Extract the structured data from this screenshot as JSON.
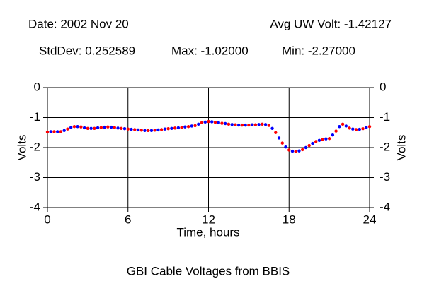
{
  "chart_data": {
    "type": "scatter",
    "title": "GBI Cable Voltages from BBIS",
    "annotations": [
      "Date: 2002 Nov 20",
      "Avg UW Volt: -1.42127",
      "StdDev: 0.252589",
      "Max: -1.02000",
      "Min: -2.27000"
    ],
    "x_label": "Time, hours",
    "y_label": "Volts",
    "y2_label": "Volts",
    "xlim": [
      0,
      24
    ],
    "xticks": [
      0,
      6,
      12,
      18,
      24
    ],
    "ylim": [
      -4,
      0
    ],
    "yticks": [
      0,
      -1,
      -2,
      -3,
      -4
    ],
    "y2lim": [
      -4,
      0
    ],
    "y2ticks": [
      0,
      -1,
      -2,
      -3,
      -4
    ],
    "grid": true,
    "series": [
      {
        "color": "#ff0000",
        "x": [
          0,
          0.5,
          1,
          1.5,
          2,
          2.5,
          3,
          3.5,
          4,
          4.5,
          5,
          5.5,
          6,
          6.5,
          7,
          7.5,
          8,
          8.5,
          9,
          9.5,
          10,
          10.5,
          11,
          11.5,
          12,
          12.5,
          13,
          13.5,
          14,
          14.5,
          15,
          15.5,
          16,
          16.5,
          17,
          17.5,
          18,
          18.5,
          19,
          19.5,
          20,
          20.5,
          21,
          21.5,
          22,
          22.5,
          23,
          23.5,
          24
        ],
        "values": [
          -1.48,
          -1.47,
          -1.47,
          -1.38,
          -1.3,
          -1.31,
          -1.36,
          -1.36,
          -1.33,
          -1.31,
          -1.33,
          -1.36,
          -1.38,
          -1.4,
          -1.42,
          -1.43,
          -1.42,
          -1.4,
          -1.37,
          -1.35,
          -1.33,
          -1.3,
          -1.27,
          -1.17,
          -1.13,
          -1.16,
          -1.19,
          -1.22,
          -1.24,
          -1.25,
          -1.25,
          -1.24,
          -1.22,
          -1.26,
          -1.5,
          -1.85,
          -2.08,
          -2.13,
          -2.07,
          -1.93,
          -1.8,
          -1.73,
          -1.7,
          -1.45,
          -1.22,
          -1.35,
          -1.4,
          -1.37,
          -1.3
        ]
      },
      {
        "color": "#0000ff",
        "x": [
          0.25,
          0.75,
          1.25,
          1.75,
          2.25,
          2.75,
          3.25,
          3.75,
          4.25,
          4.75,
          5.25,
          5.75,
          6.25,
          6.75,
          7.25,
          7.75,
          8.25,
          8.75,
          9.25,
          9.75,
          10.25,
          10.75,
          11.25,
          11.75,
          12.25,
          12.75,
          13.25,
          13.75,
          14.25,
          14.75,
          15.25,
          15.75,
          16.25,
          16.75,
          17.25,
          17.75,
          18.25,
          18.75,
          19.25,
          19.75,
          20.25,
          20.75,
          21.25,
          21.75,
          22.25,
          22.75,
          23.25,
          23.75
        ],
        "values": [
          -1.47,
          -1.47,
          -1.43,
          -1.33,
          -1.3,
          -1.34,
          -1.36,
          -1.34,
          -1.32,
          -1.32,
          -1.35,
          -1.37,
          -1.39,
          -1.41,
          -1.43,
          -1.43,
          -1.41,
          -1.38,
          -1.36,
          -1.34,
          -1.31,
          -1.28,
          -1.22,
          -1.15,
          -1.14,
          -1.17,
          -1.2,
          -1.23,
          -1.25,
          -1.25,
          -1.24,
          -1.23,
          -1.23,
          -1.36,
          -1.68,
          -1.98,
          -2.12,
          -2.11,
          -2.0,
          -1.86,
          -1.76,
          -1.71,
          -1.58,
          -1.3,
          -1.28,
          -1.38,
          -1.39,
          -1.33
        ]
      }
    ]
  }
}
